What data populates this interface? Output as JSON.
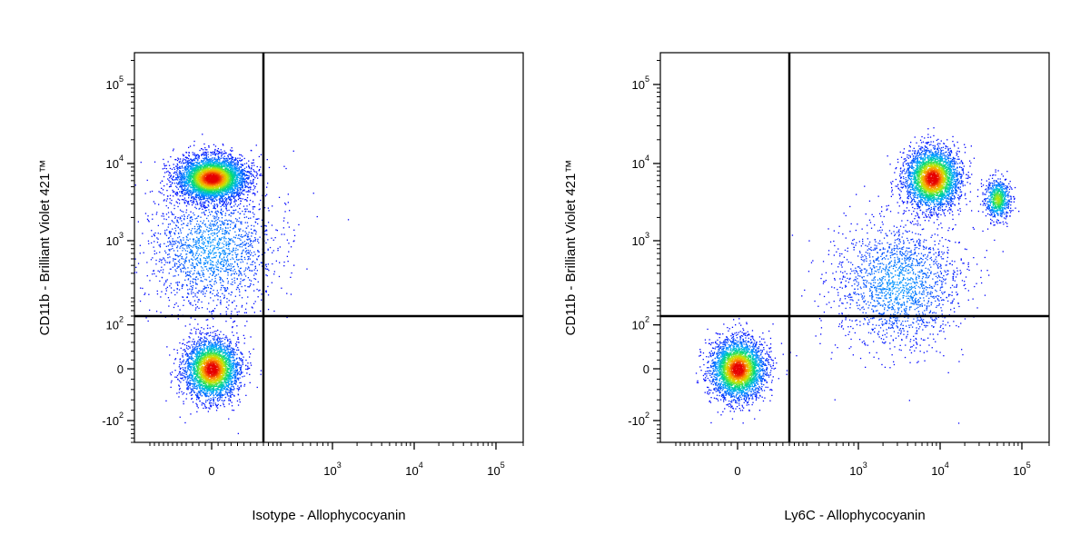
{
  "chart_data": [
    {
      "type": "scatter",
      "title": "",
      "xlabel": "Isotype - Allophycocyanin",
      "ylabel": "CD11b - Brilliant Violet 421™",
      "x_scale": "biexponential",
      "y_scale": "biexponential",
      "xlim": [
        -300,
        200000
      ],
      "ylim": [
        -200,
        250000
      ],
      "x_ticks": [
        {
          "value": 0,
          "base": "0",
          "exp": ""
        },
        {
          "value": 1000,
          "base": "10",
          "exp": "3"
        },
        {
          "value": 10000,
          "base": "10",
          "exp": "4"
        },
        {
          "value": 100000,
          "base": "10",
          "exp": "5"
        }
      ],
      "y_ticks": [
        {
          "value": 100000,
          "base": "10",
          "exp": "5"
        },
        {
          "value": 10000,
          "base": "10",
          "exp": "4"
        },
        {
          "value": 1000,
          "base": "10",
          "exp": "3"
        },
        {
          "value": 100,
          "base": "10",
          "exp": "2"
        },
        {
          "value": 0,
          "base": "0",
          "exp": ""
        },
        {
          "value": -100,
          "base": "-10",
          "exp": "2"
        }
      ],
      "gates": {
        "x": 200,
        "y": 120
      },
      "populations": [
        {
          "name": "",
          "x_center": 0,
          "y_center": 6500,
          "spread": "high",
          "density": "high",
          "count": 4200
        },
        {
          "name": "",
          "x_center": 0,
          "y_center": 0,
          "spread": "medium",
          "density": "high",
          "count": 3200
        },
        {
          "name": "",
          "x_center": 0,
          "y_center": 800,
          "spread": "wide",
          "density": "low",
          "count": 1800
        }
      ],
      "grid": false,
      "legend": "none"
    },
    {
      "type": "scatter",
      "title": "",
      "xlabel": "Ly6C - Allophycocyanin",
      "ylabel": "CD11b - Brilliant Violet 421™",
      "x_scale": "biexponential",
      "y_scale": "biexponential",
      "xlim": [
        -300,
        200000
      ],
      "ylim": [
        -200,
        250000
      ],
      "x_ticks": [
        {
          "value": 0,
          "base": "0",
          "exp": ""
        },
        {
          "value": 1000,
          "base": "10",
          "exp": "3"
        },
        {
          "value": 10000,
          "base": "10",
          "exp": "4"
        },
        {
          "value": 100000,
          "base": "10",
          "exp": "5"
        }
      ],
      "y_ticks": [
        {
          "value": 100000,
          "base": "10",
          "exp": "5"
        },
        {
          "value": 10000,
          "base": "10",
          "exp": "4"
        },
        {
          "value": 1000,
          "base": "10",
          "exp": "3"
        },
        {
          "value": 100,
          "base": "10",
          "exp": "2"
        },
        {
          "value": 0,
          "base": "0",
          "exp": ""
        },
        {
          "value": -100,
          "base": "-10",
          "exp": "2"
        }
      ],
      "gates": {
        "x": 200,
        "y": 120
      },
      "populations": [
        {
          "name": "",
          "x_center": 8000,
          "y_center": 6500,
          "spread": "medium",
          "density": "high",
          "count": 3200
        },
        {
          "name": "",
          "x_center": 0,
          "y_center": 0,
          "spread": "medium",
          "density": "high",
          "count": 3200
        },
        {
          "name": "",
          "x_center": 50000,
          "y_center": 3500,
          "spread": "small",
          "density": "medium",
          "count": 700
        },
        {
          "name": "",
          "x_center": 3000,
          "y_center": 300,
          "spread": "wide",
          "density": "low",
          "count": 1800
        }
      ],
      "grid": false,
      "legend": "none"
    }
  ]
}
